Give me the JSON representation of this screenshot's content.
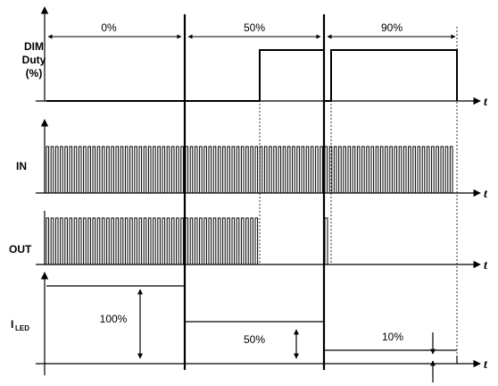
{
  "rows": {
    "dim": {
      "label_lines": [
        "DIM",
        "Duty",
        "(%)"
      ],
      "axis_label": "t"
    },
    "in": {
      "label": "IN",
      "axis_label": "t"
    },
    "out": {
      "label": "OUT",
      "axis_label": "t"
    },
    "iled": {
      "label_main": "I",
      "label_sub": "LED",
      "axis_label": "t"
    }
  },
  "intervals": [
    {
      "duty_label": "0%",
      "duty": 0,
      "iled_label": "100%",
      "iled_fraction": 1.0
    },
    {
      "duty_label": "50%",
      "duty": 0.5,
      "iled_label": "50%",
      "iled_fraction": 0.5
    },
    {
      "duty_label": "90%",
      "duty": 0.9,
      "iled_label": "10%",
      "iled_fraction": 0.1
    }
  ],
  "colors": {
    "stroke": "#000000",
    "background": "#ffffff"
  }
}
